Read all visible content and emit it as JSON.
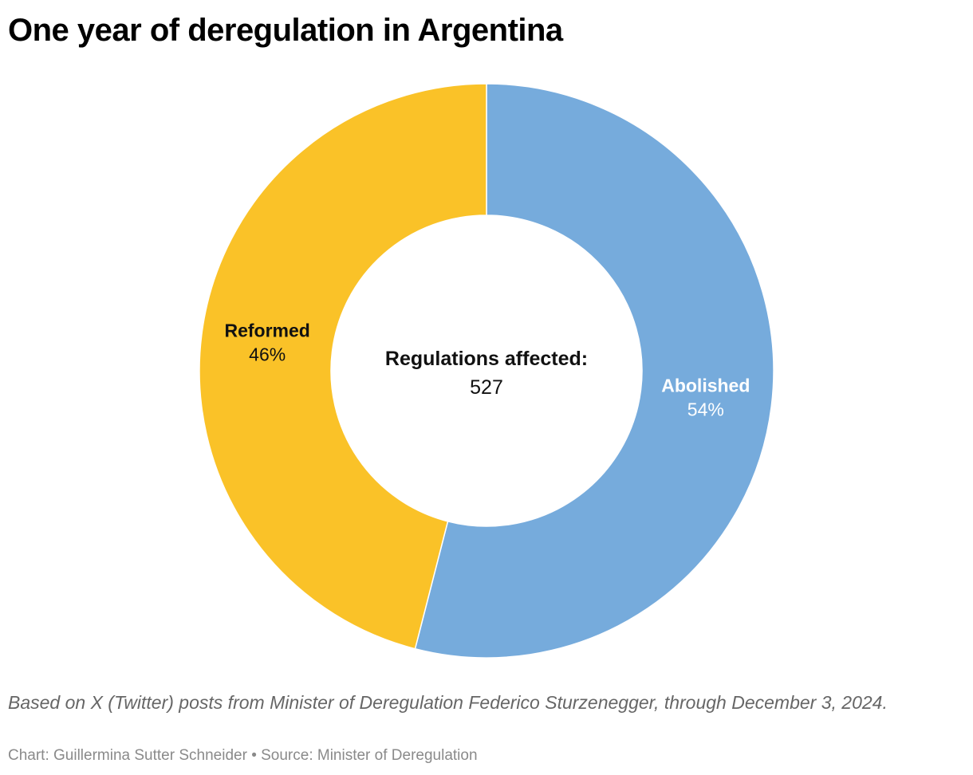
{
  "title": "One year of deregulation in Argentina",
  "chart_data": {
    "type": "pie",
    "subtype": "donut",
    "center_label": "Regulations affected:",
    "center_value": "527",
    "total": 527,
    "slices": [
      {
        "label": "Abolished",
        "value": 54,
        "value_label": "54%",
        "color": "#76abdc",
        "label_color": "#ffffff"
      },
      {
        "label": "Reformed",
        "value": 46,
        "value_label": "46%",
        "color": "#fac228",
        "label_color": "#111111"
      }
    ],
    "legend": "none"
  },
  "footer": {
    "note": "Based on X (Twitter) posts from Minister of Deregulation Federico Sturzenegger, through December 3, 2024.",
    "credits": "Chart: Guillermina Sutter Schneider • Source: Minister of Deregulation"
  }
}
